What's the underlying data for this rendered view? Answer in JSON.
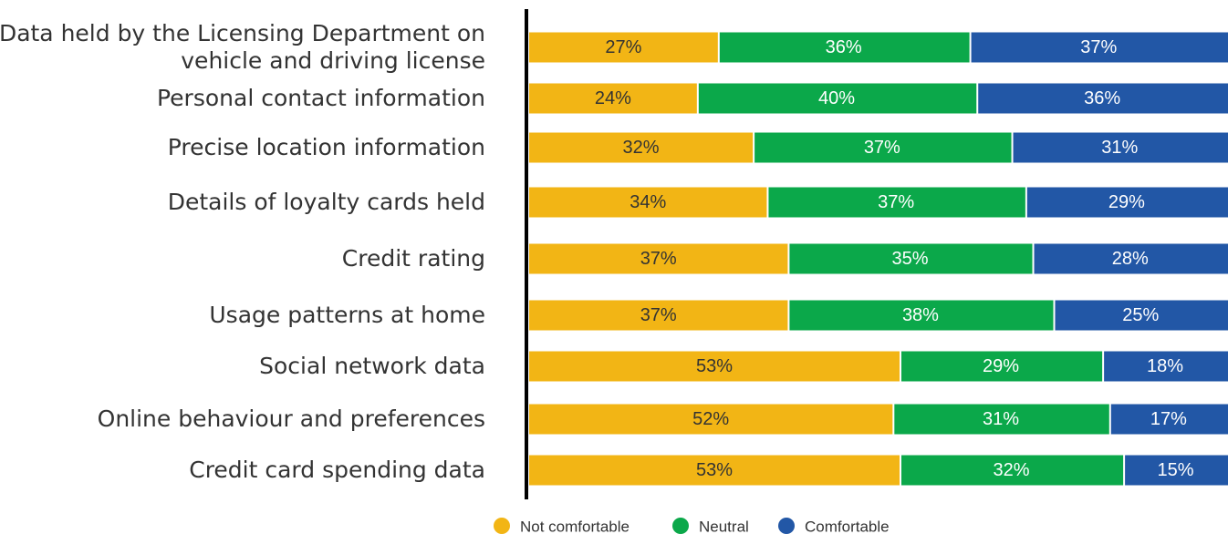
{
  "chart_data": {
    "type": "stacked-bar-horizontal",
    "categories": [
      "Data held by the Licensing Department on\nvehicle and driving license",
      "Personal contact information",
      "Precise location information",
      "Details of loyalty cards held",
      "Credit rating",
      "Usage patterns at home",
      "Social network data",
      "Online behaviour and preferences",
      "Credit card spending data"
    ],
    "series": [
      {
        "name": "Not comfortable",
        "color": "#f2b515",
        "values": [
          27,
          24,
          32,
          34,
          37,
          37,
          53,
          52,
          53
        ],
        "value_labels": [
          "27%",
          "24%",
          "32%",
          "34%",
          "37%",
          "37%",
          "53%",
          "52%",
          "53%"
        ]
      },
      {
        "name": "Neutral",
        "color": "#0ba84a",
        "values": [
          36,
          40,
          37,
          37,
          35,
          38,
          29,
          31,
          32
        ],
        "value_labels": [
          "36%",
          "40%",
          "37%",
          "37%",
          "35%",
          "38%",
          "29%",
          "31%",
          "32%"
        ]
      },
      {
        "name": "Comfortable",
        "color": "#2257a6",
        "values": [
          37,
          36,
          31,
          29,
          28,
          25,
          18,
          17,
          15
        ],
        "value_labels": [
          "37%",
          "36%",
          "31%",
          "29%",
          "28%",
          "25%",
          "18%",
          "17%",
          "15%"
        ]
      }
    ],
    "xlim": [
      0,
      100
    ],
    "legend": "bottom"
  }
}
